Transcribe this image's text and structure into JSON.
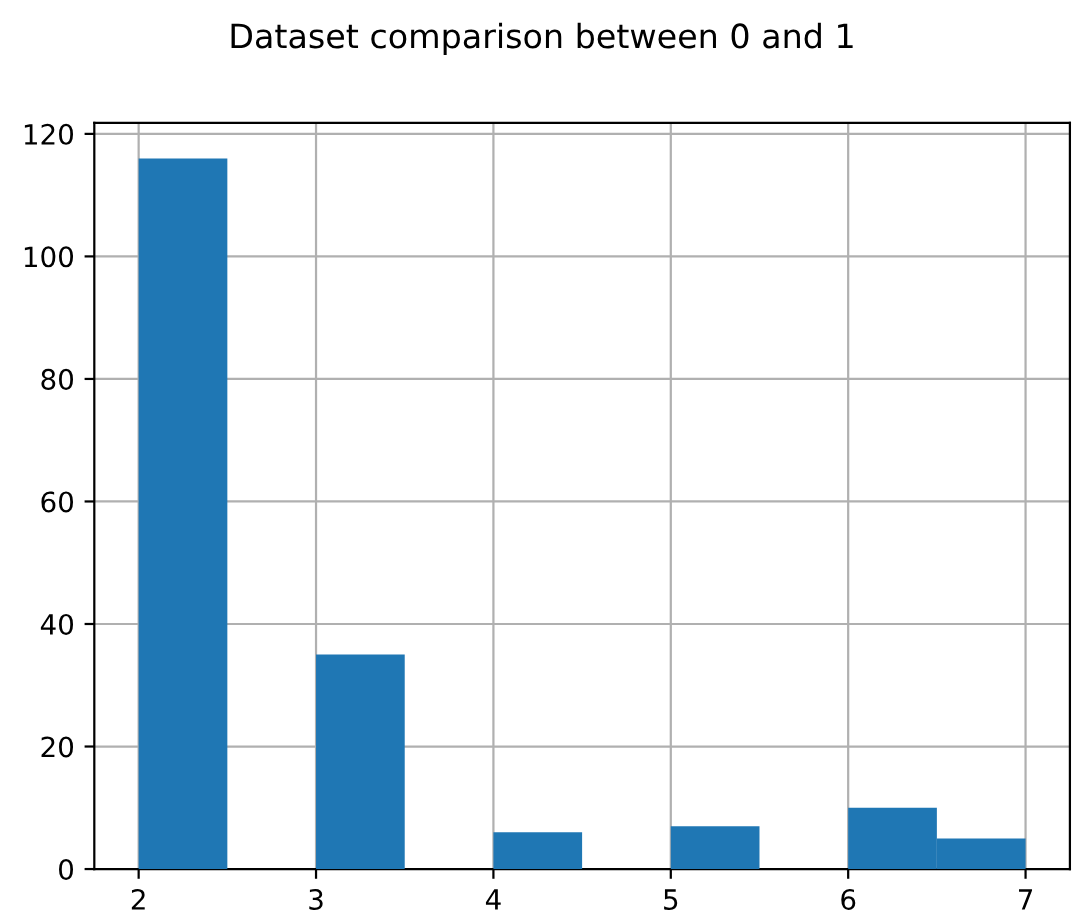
{
  "chart_data": {
    "type": "histogram",
    "title": "Dataset comparison between 0 and 1",
    "bins": [
      2,
      2.5,
      3,
      3.5,
      4,
      4.5,
      5,
      5.5,
      6,
      6.5,
      7
    ],
    "values": [
      116,
      0,
      35,
      0,
      6,
      0,
      7,
      0,
      10,
      5
    ],
    "color": "#1f77b4",
    "xlim": [
      1.75,
      7.25
    ],
    "xticks": [
      2,
      3,
      4,
      5,
      6,
      7
    ],
    "ylim": [
      0,
      121.8
    ],
    "yticks": [
      0,
      20,
      40,
      60,
      80,
      100,
      120
    ],
    "grid": true
  }
}
